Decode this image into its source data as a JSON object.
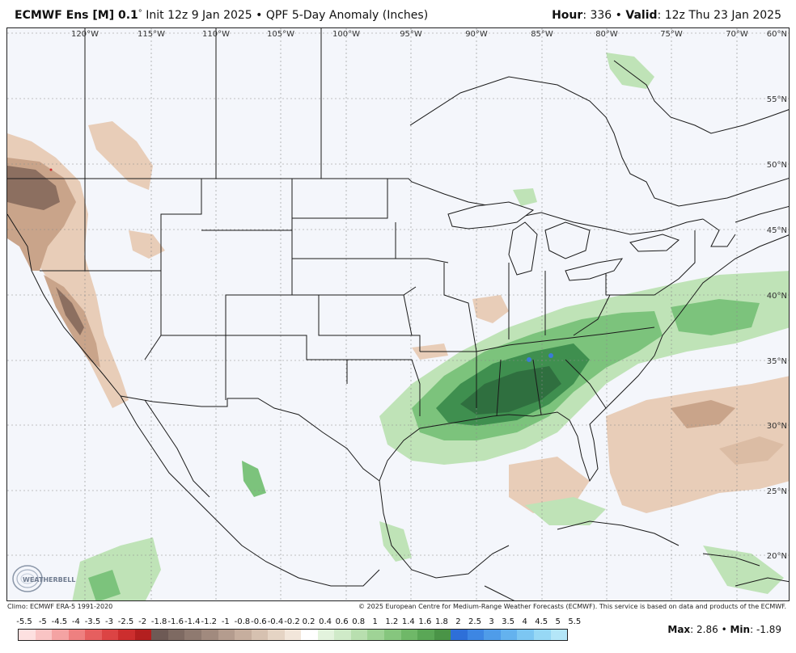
{
  "header": {
    "model": "ECMWF Ens [M] 0.1",
    "degree_sign": "°",
    "init": "Init 12z 9 Jan 2025",
    "bullet": "•",
    "product": "QPF 5-Day Anomaly (Inches)",
    "hour_label": "Hour",
    "hour_value": "336",
    "valid_label": "Valid",
    "valid_value": "12z Thu 23 Jan 2025"
  },
  "map": {
    "lon_labels": [
      "120°W",
      "115°W",
      "110°W",
      "105°W",
      "100°W",
      "95°W",
      "90°W",
      "85°W",
      "80°W",
      "75°W",
      "70°W"
    ],
    "lat_labels": [
      "60°N",
      "55°N",
      "50°N",
      "45°N",
      "40°N",
      "35°N",
      "30°N",
      "25°N",
      "20°N"
    ],
    "logo_text": "WEATHERBELL",
    "colors": {
      "land_bg": "#f4f6fb",
      "border": "#1a1a1a",
      "dry_light": "#e8cdb8",
      "dry_mid": "#c9a48a",
      "dry_dark": "#8c6f60",
      "wet_light": "#bfe3b7",
      "wet_mid": "#7cc37c",
      "wet_dark": "#3f8f4f",
      "wet_darker": "#2f6f3f",
      "blue_spot": "#3a7ad8"
    }
  },
  "footer": {
    "climo": "Climo: ECMWF ERA-5 1991-2020",
    "copyright": "© 2025 European Centre for Medium-Range Weather Forecasts (ECMWF). This service is based on data and products of the ECMWF."
  },
  "legend": {
    "labels": [
      "-5.5",
      "-5",
      "-4.5",
      "-4",
      "-3.5",
      "-3",
      "-2.5",
      "-2",
      "-1.8",
      "-1.6",
      "-1.4",
      "-1.2",
      "-1",
      "-0.8",
      "-0.6",
      "-0.4",
      "-0.2",
      "0.2",
      "0.4",
      "0.6",
      "0.8",
      "1",
      "1.2",
      "1.4",
      "1.6",
      "1.8",
      "2",
      "2.5",
      "3",
      "3.5",
      "4",
      "4.5",
      "5",
      "5.5"
    ],
    "colors": [
      "#fde0e0",
      "#f9c4c4",
      "#f4a3a3",
      "#ee8080",
      "#e65f5f",
      "#dc4444",
      "#cc2e2e",
      "#b31f1f",
      "#6e5a55",
      "#7e6a62",
      "#8f7a70",
      "#a18a7e",
      "#b49c8e",
      "#c6ae9e",
      "#d6c1b0",
      "#e5d4c4",
      "#f2e6da",
      "#ffffff",
      "#e3f3dd",
      "#cfeac8",
      "#b8dfaf",
      "#9fd396",
      "#86c67e",
      "#6fb868",
      "#5aa756",
      "#4a9447",
      "#2e6fd8",
      "#3d86e3",
      "#4f9ce9",
      "#64b2ee",
      "#7cc6f2",
      "#97d8f5",
      "#b4e6f8"
    ]
  },
  "stats": {
    "max_label": "Max",
    "max_value": "2.86",
    "min_label": "Min",
    "min_value": "-1.89"
  }
}
